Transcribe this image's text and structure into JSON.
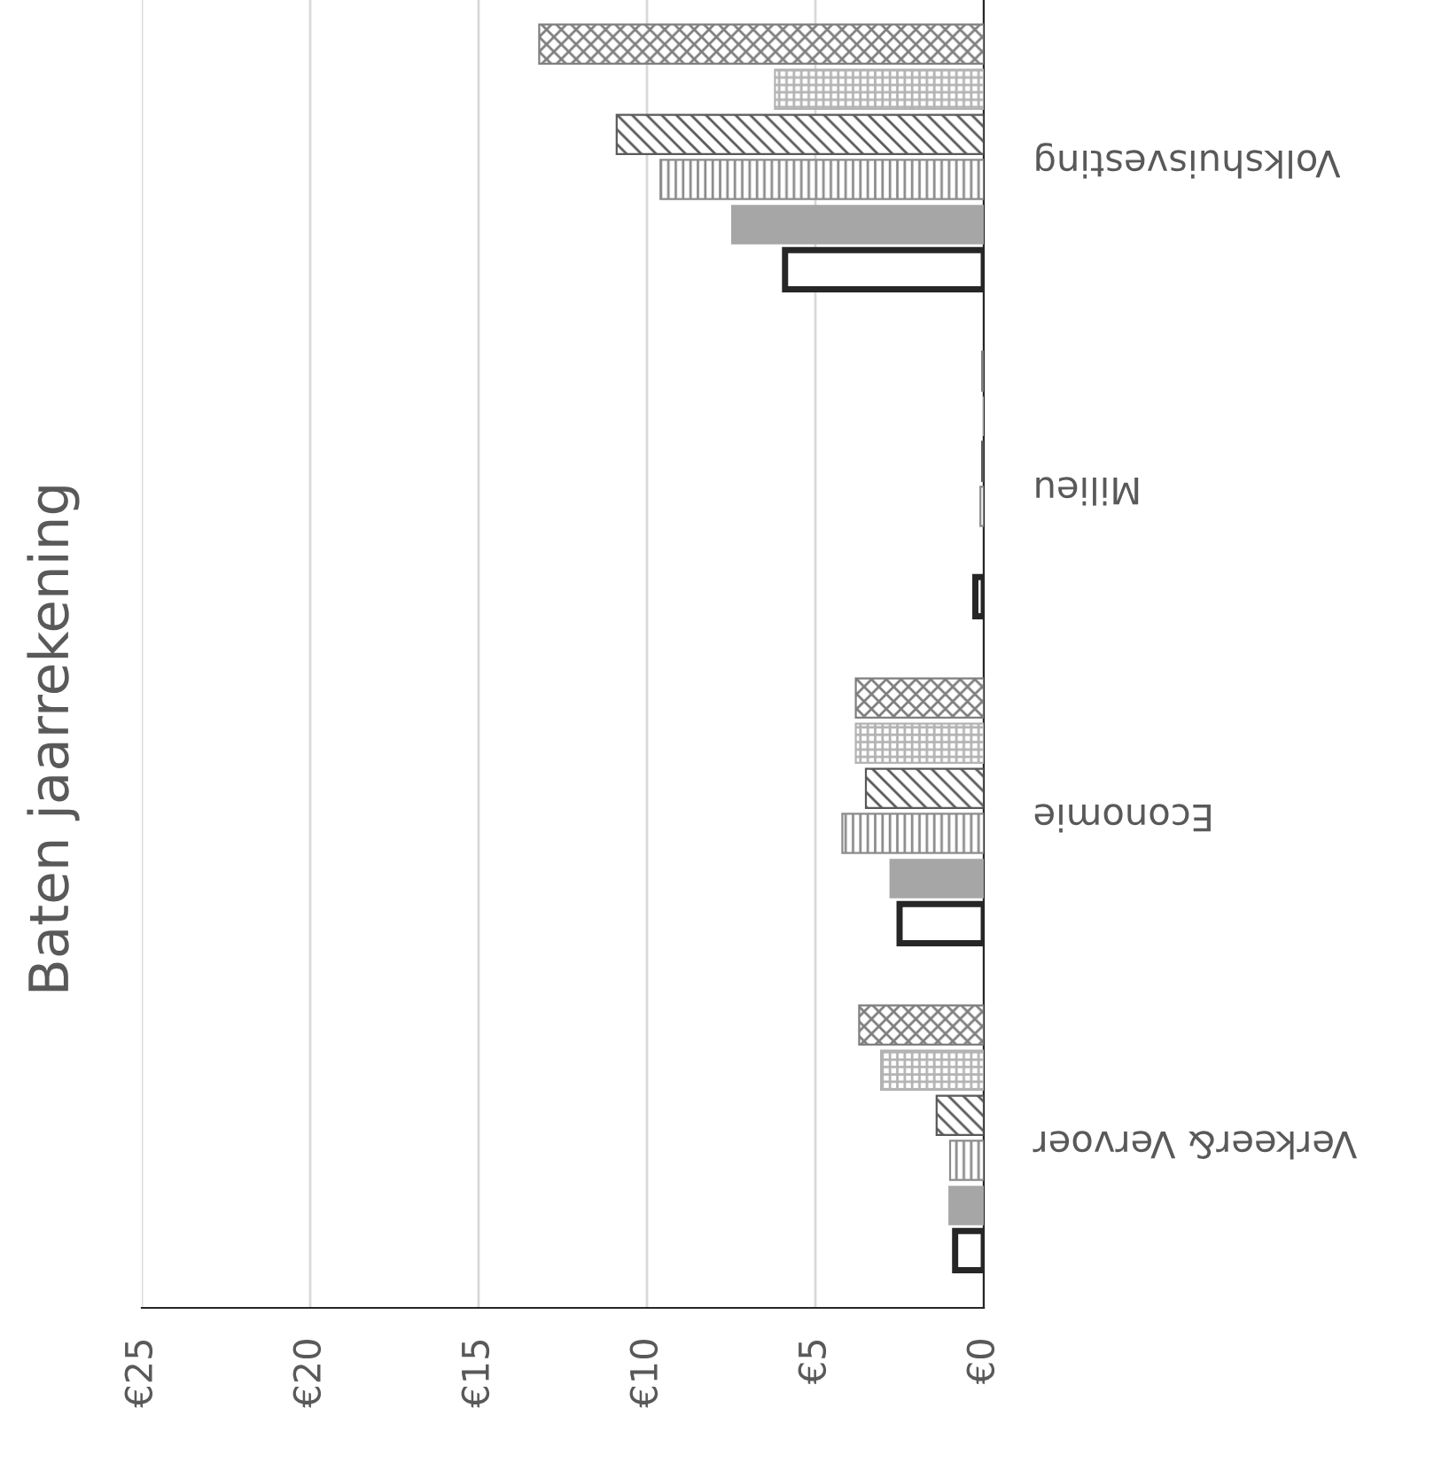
{
  "chart_data": {
    "type": "bar",
    "orientation": "horizontal",
    "title": "Baten jaarrekening",
    "categories": [
      "Volkshuisvesting",
      "Milieu",
      "Economie",
      "Verkeer& Vervoer"
    ],
    "series": [
      {
        "color": "#7f7f7f",
        "values": [
          13.2,
          0.05,
          3.8,
          3.7
        ]
      },
      {
        "color": "#b3b3b3",
        "values": [
          6.2,
          null,
          3.8,
          3.05
        ]
      },
      {
        "color": "#595959",
        "values": [
          10.9,
          0.05,
          3.5,
          1.4
        ]
      },
      {
        "color": "#8c8c8c",
        "values": [
          9.6,
          0.1,
          4.2,
          1.0
        ]
      },
      {
        "color": "#a6a6a6",
        "values": [
          7.5,
          null,
          2.8,
          1.05
        ]
      },
      {
        "color": "#262626",
        "values": [
          5.9,
          0.25,
          2.5,
          0.85
        ]
      }
    ],
    "xlim": [
      25,
      0
    ],
    "xticks": [
      {
        "value": 25,
        "label": "€25"
      },
      {
        "value": 20,
        "label": "€20"
      },
      {
        "value": 15,
        "label": "€15"
      },
      {
        "value": 10,
        "label": "€10"
      },
      {
        "value": 5,
        "label": "€5"
      },
      {
        "value": 0,
        "label": "€0"
      }
    ],
    "grid": "x"
  }
}
